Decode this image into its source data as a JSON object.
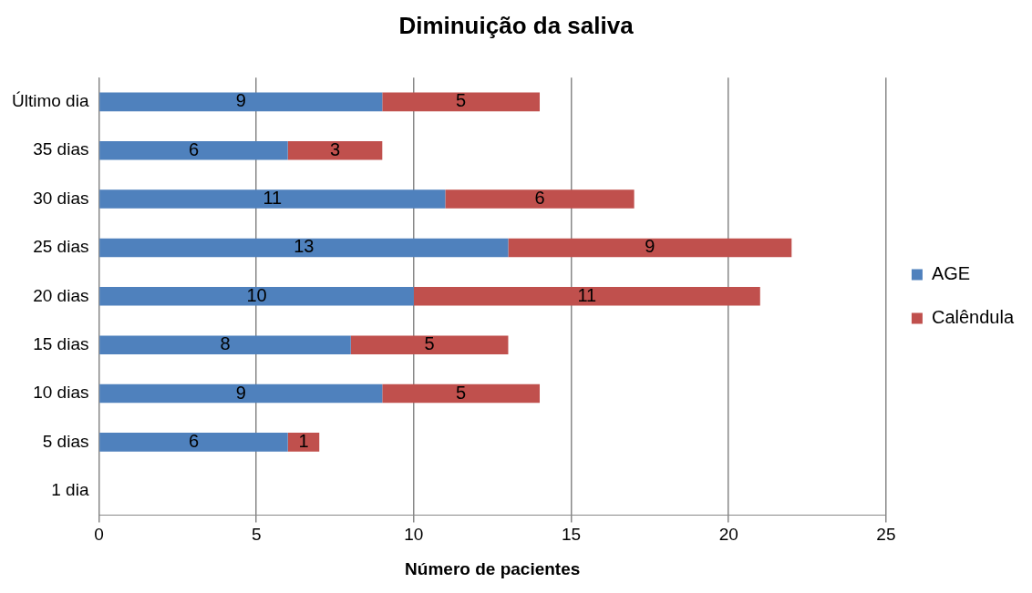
{
  "chart_data": {
    "type": "bar",
    "orientation": "horizontal",
    "stacked": true,
    "title": "Diminuição da saliva",
    "xlabel": "Número de pacientes",
    "categories": [
      "Último dia",
      "35 dias",
      "30 dias",
      "25 dias",
      "20 dias",
      "15 dias",
      "10 dias",
      "5 dias",
      "1 dia"
    ],
    "series": [
      {
        "name": "AGE",
        "color": "#4f81bd",
        "values": [
          9,
          6,
          11,
          13,
          10,
          8,
          9,
          6,
          null
        ]
      },
      {
        "name": "Calêndula",
        "color": "#c0504d",
        "values": [
          5,
          3,
          6,
          9,
          11,
          5,
          5,
          1,
          null
        ]
      }
    ],
    "xlim": [
      0,
      25
    ],
    "xticks": [
      0,
      5,
      10,
      15,
      20,
      25
    ],
    "grid": "x",
    "legend": "right",
    "data_labels": true
  }
}
